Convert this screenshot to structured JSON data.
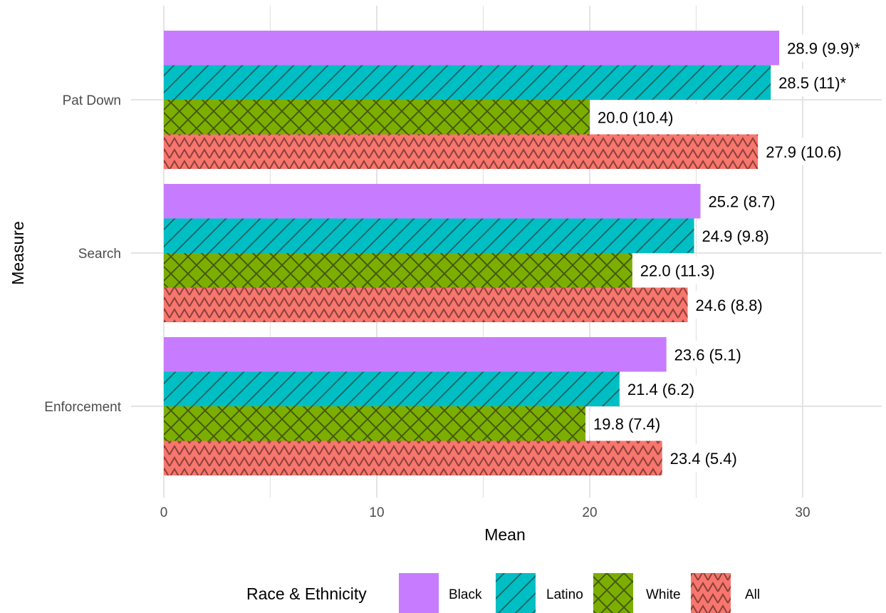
{
  "chart_data": {
    "type": "bar",
    "orientation": "horizontal",
    "xlabel": "Mean",
    "ylabel": "Measure",
    "xlim": [
      0,
      33.5
    ],
    "x_ticks": [
      "0",
      "10",
      "20",
      "30"
    ],
    "categories": [
      "Pat Down",
      "Search",
      "Enforcement"
    ],
    "legend_title": "Race & Ethnicity",
    "legend_position": "bottom",
    "grid": true,
    "series": [
      {
        "name": "Black",
        "color": "#C77CFF",
        "pattern": "none",
        "values": [
          28.9,
          25.2,
          23.6
        ],
        "labels": [
          "28.9 (9.9)*",
          "25.2 (8.7)",
          "23.6 (5.1)"
        ]
      },
      {
        "name": "Latino",
        "color": "#00BFC4",
        "pattern": "stripe",
        "values": [
          28.5,
          24.9,
          21.4
        ],
        "labels": [
          "28.5 (11)*",
          "24.9 (9.8)",
          "21.4 (6.2)"
        ]
      },
      {
        "name": "White",
        "color": "#7CAE00",
        "pattern": "crosshatch",
        "values": [
          20.0,
          22.0,
          19.8
        ],
        "labels": [
          "20.0 (10.4)",
          "22.0 (11.3)",
          "19.8 (7.4)"
        ]
      },
      {
        "name": "All",
        "color": "#F8766D",
        "pattern": "zigzag",
        "values": [
          27.9,
          24.6,
          23.4
        ],
        "labels": [
          "27.9 (10.6)",
          "24.6 (8.8)",
          "23.4 (5.4)"
        ]
      }
    ]
  }
}
